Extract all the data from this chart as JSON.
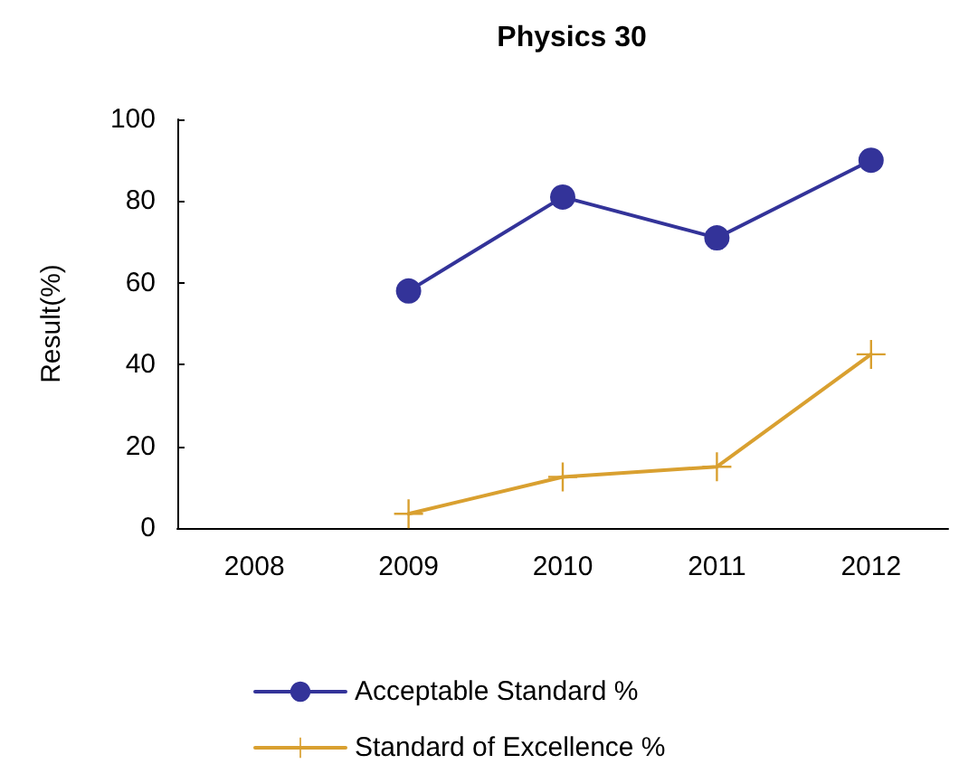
{
  "chart_data": {
    "type": "line",
    "title": "Physics 30",
    "ylabel": "Result(%)",
    "categories": [
      "2008",
      "2009",
      "2010",
      "2011",
      "2012"
    ],
    "series": [
      {
        "name": "Acceptable Standard %",
        "color": "#333399",
        "marker": "circle",
        "values": [
          null,
          58,
          81,
          71,
          90
        ]
      },
      {
        "name": "Standard of Excellence %",
        "color": "#d9a030",
        "marker": "cross",
        "values": [
          null,
          3.5,
          12.5,
          15,
          42.5
        ]
      }
    ],
    "ylim": [
      0,
      100
    ],
    "yticks": [
      0,
      20,
      40,
      60,
      80,
      100
    ],
    "grid": false,
    "legend": "bottom"
  }
}
